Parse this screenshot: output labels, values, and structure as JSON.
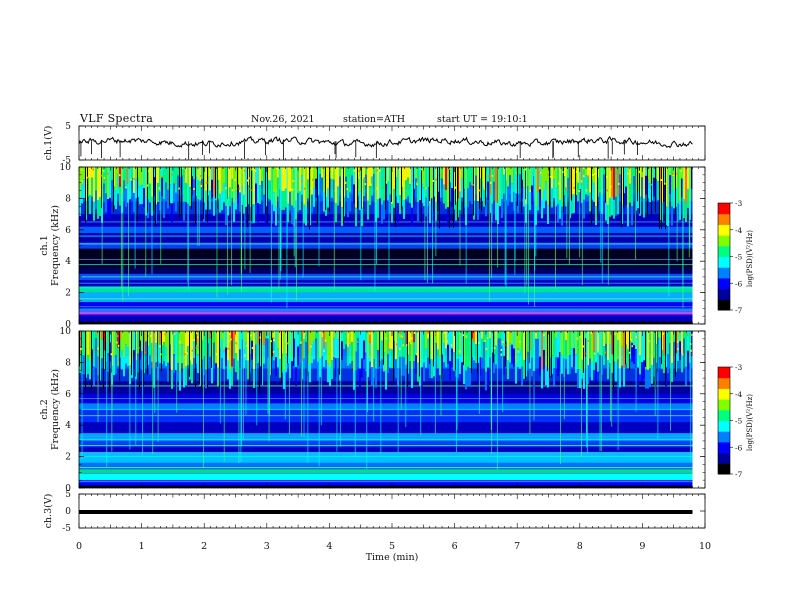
{
  "header": {
    "title": "VLF  Spectra",
    "date": "Nov.26, 2021",
    "station": "station=ATH",
    "start_ut": "start  UT  =   19:10:1"
  },
  "chart_data": {
    "type": "heatmap",
    "xlabel": "Time  (min)",
    "xlim": [
      0,
      10
    ],
    "xticks": [
      "0",
      "1",
      "2",
      "3",
      "4",
      "5",
      "6",
      "7",
      "8",
      "9",
      "10"
    ],
    "panels": [
      {
        "id": "ch1-waveform",
        "type": "line",
        "ylabel": "ch.1(V)",
        "ylim": [
          -5,
          5
        ],
        "yticks": [
          "5",
          "-5"
        ],
        "color": "#000000"
      },
      {
        "id": "ch1-spectrogram",
        "type": "heatmap",
        "ylabel": "ch.1\nFrequency  (kHz)",
        "ylim": [
          0,
          10
        ],
        "yticks": [
          "0",
          "2",
          "4",
          "6",
          "8",
          "10"
        ],
        "colorbar": {
          "label": "log(PSD)(V²/Hz)",
          "range": [
            -7,
            -3
          ],
          "ticks": [
            "-3",
            "-4",
            "-5",
            "-6",
            "-7"
          ]
        }
      },
      {
        "id": "ch2-spectrogram",
        "type": "heatmap",
        "ylabel": "ch.2\nFrequency  (kHz)",
        "ylim": [
          0,
          10
        ],
        "yticks": [
          "0",
          "2",
          "4",
          "6",
          "8",
          "10"
        ],
        "colorbar": {
          "label": "log(PSD)(V²/Hz)",
          "range": [
            -7,
            -3
          ],
          "ticks": [
            "-3",
            "-4",
            "-5",
            "-6",
            "-7"
          ]
        }
      },
      {
        "id": "ch3-waveform",
        "type": "line",
        "ylabel": "ch.3(V)",
        "ylim": [
          -5,
          5
        ],
        "yticks": [
          "5",
          "0",
          "-5"
        ],
        "color": "#000000"
      }
    ],
    "colormap": [
      "#000000",
      "#0000a0",
      "#0000ff",
      "#0080ff",
      "#00ffff",
      "#00ff80",
      "#80ff00",
      "#ffff00",
      "#ff8000",
      "#ff0000",
      "#ffffff"
    ],
    "data_end_min": 9.8
  }
}
